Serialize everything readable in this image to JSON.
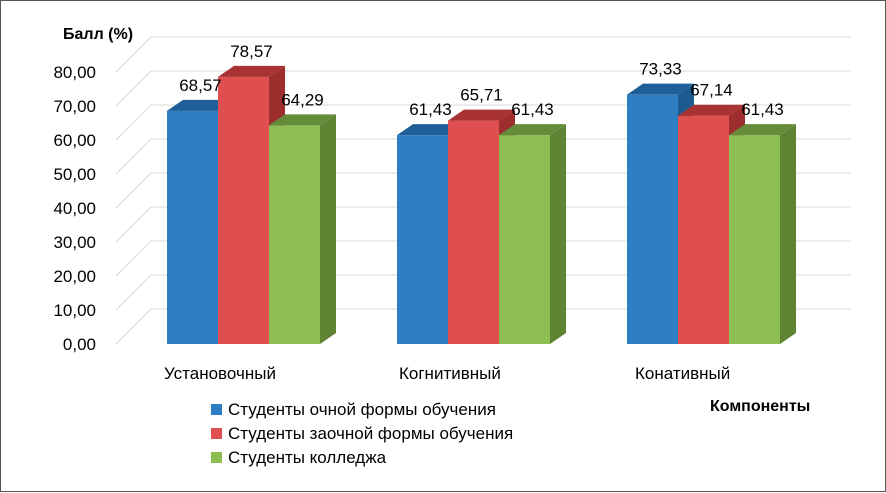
{
  "chart_data": {
    "type": "bar",
    "ylabel": "Балл (%)",
    "xlabel": "Компоненты",
    "ylim": [
      0,
      80
    ],
    "ytick_step": 10,
    "ytick_labels": [
      "0,00",
      "10,00",
      "20,00",
      "30,00",
      "40,00",
      "50,00",
      "60,00",
      "70,00",
      "80,00"
    ],
    "categories": [
      "Установочный",
      "Когнитивный",
      "Конативный"
    ],
    "series": [
      {
        "name": "Студенты очной формы обучения",
        "values": [
          68.57,
          61.43,
          73.33
        ],
        "labels": [
          "68,57",
          "61,43",
          "73,33"
        ],
        "color": "#2E7EC4",
        "top_color": "#1F5E96",
        "side_color": "#1C5A8F"
      },
      {
        "name": "Студенты заочной формы обучения",
        "values": [
          78.57,
          65.71,
          67.14
        ],
        "labels": [
          "78,57",
          "65,71",
          "67,14"
        ],
        "color": "#E04F4F",
        "top_color": "#A93333",
        "side_color": "#9E2E2E"
      },
      {
        "name": "Студенты колледжа",
        "values": [
          64.29,
          61.43,
          61.43
        ],
        "labels": [
          "64,29",
          "61,43",
          "61,43"
        ],
        "color": "#8DBE54",
        "top_color": "#648C3A",
        "side_color": "#5E8434"
      }
    ],
    "legend_position": "bottom-left",
    "grid": true,
    "style": "3d-clustered-column"
  }
}
